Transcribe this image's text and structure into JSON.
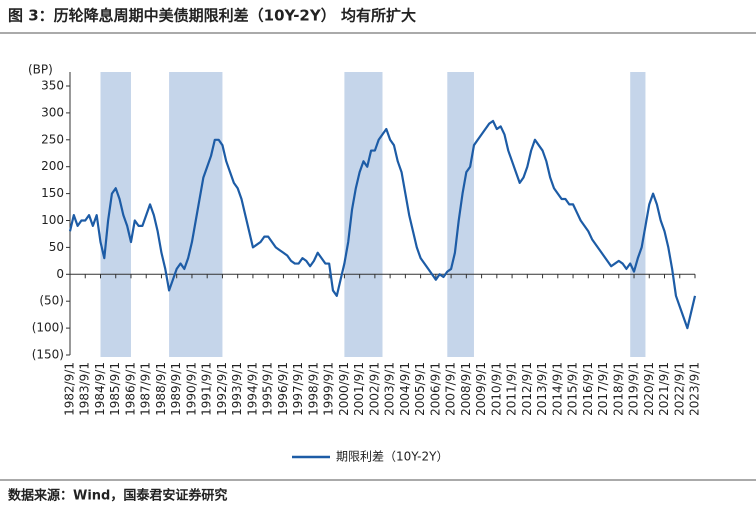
{
  "chart_data": {
    "type": "line",
    "title": "图 3：历轮降息周期中美债期限利差（10Y-2Y） 均有所扩大",
    "y_axis_label": "(BP)",
    "source": "数据来源：Wind，国泰君安证券研究",
    "categories": [
      "1982/9/1",
      null,
      null,
      null,
      "1983/9/1",
      null,
      null,
      null,
      "1984/9/1",
      null,
      null,
      null,
      "1985/9/1",
      null,
      null,
      null,
      "1986/9/1",
      null,
      null,
      null,
      "1987/9/1",
      null,
      null,
      null,
      "1988/9/1",
      null,
      null,
      null,
      "1989/9/1",
      null,
      null,
      null,
      "1990/9/1",
      null,
      null,
      null,
      "1991/9/1",
      null,
      null,
      null,
      "1992/9/1",
      null,
      null,
      null,
      "1993/9/1",
      null,
      null,
      null,
      "1994/9/1",
      null,
      null,
      null,
      "1995/9/1",
      null,
      null,
      null,
      "1996/9/1",
      null,
      null,
      null,
      "1997/9/1",
      null,
      null,
      null,
      "1998/9/1",
      null,
      null,
      null,
      "1999/9/1",
      null,
      null,
      null,
      "2000/9/1",
      null,
      null,
      null,
      "2001/9/1",
      null,
      null,
      null,
      "2002/9/1",
      null,
      null,
      null,
      "2003/9/1",
      null,
      null,
      null,
      "2004/9/1",
      null,
      null,
      null,
      "2005/9/1",
      null,
      null,
      null,
      "2006/9/1",
      null,
      null,
      null,
      "2007/9/1",
      null,
      null,
      null,
      "2008/9/1",
      null,
      null,
      null,
      "2009/9/1",
      null,
      null,
      null,
      "2010/9/1",
      null,
      null,
      null,
      "2011/9/1",
      null,
      null,
      null,
      "2012/9/1",
      null,
      null,
      null,
      "2013/9/1",
      null,
      null,
      null,
      "2014/9/1",
      null,
      null,
      null,
      "2015/9/1",
      null,
      null,
      null,
      "2016/9/1",
      null,
      null,
      null,
      "2017/9/1",
      null,
      null,
      null,
      "2018/9/1",
      null,
      null,
      null,
      "2019/9/1",
      null,
      null,
      null,
      "2020/9/1",
      null,
      null,
      null,
      "2021/9/1",
      null,
      null,
      null,
      "2022/9/1",
      null,
      null,
      null,
      "2023/9/1"
    ],
    "series": [
      {
        "name": "期限利差（10Y-2Y）",
        "color": "#1d5ca6",
        "values": [
          80,
          110,
          90,
          100,
          100,
          110,
          90,
          110,
          60,
          30,
          100,
          150,
          160,
          140,
          110,
          90,
          60,
          100,
          90,
          90,
          110,
          130,
          110,
          80,
          40,
          10,
          -30,
          -10,
          10,
          20,
          10,
          30,
          60,
          100,
          140,
          180,
          200,
          220,
          250,
          250,
          240,
          210,
          190,
          170,
          160,
          140,
          110,
          80,
          50,
          55,
          60,
          70,
          70,
          60,
          50,
          45,
          40,
          35,
          25,
          20,
          20,
          30,
          25,
          15,
          25,
          40,
          30,
          20,
          20,
          -30,
          -40,
          -10,
          20,
          60,
          120,
          160,
          190,
          210,
          200,
          230,
          230,
          250,
          260,
          270,
          250,
          240,
          210,
          190,
          150,
          110,
          80,
          50,
          30,
          20,
          10,
          0,
          -10,
          0,
          -5,
          5,
          10,
          40,
          100,
          150,
          190,
          200,
          240,
          250,
          260,
          270,
          280,
          285,
          270,
          275,
          260,
          230,
          210,
          190,
          170,
          180,
          200,
          230,
          250,
          240,
          230,
          210,
          180,
          160,
          150,
          140,
          140,
          130,
          130,
          115,
          100,
          90,
          80,
          65,
          55,
          45,
          35,
          25,
          15,
          20,
          25,
          20,
          10,
          20,
          5,
          30,
          50,
          90,
          130,
          150,
          130,
          100,
          80,
          50,
          10,
          -40,
          -60,
          -80,
          -100,
          -70,
          -40
        ]
      }
    ],
    "shaded_periods": [
      [
        8,
        16
      ],
      [
        26,
        40
      ],
      [
        72,
        82
      ],
      [
        99,
        106
      ],
      [
        147,
        151
      ]
    ],
    "shade_color": "#c5d5ea",
    "ylim": [
      -150,
      350
    ],
    "yticks": [
      {
        "value": -150,
        "label": "(150)"
      },
      {
        "value": -100,
        "label": "(100)"
      },
      {
        "value": -50,
        "label": "(50)"
      },
      0,
      50,
      100,
      150,
      200,
      250,
      300,
      350
    ],
    "negative_tick_color": "#e02020",
    "grid": false,
    "legend": "bottom"
  }
}
